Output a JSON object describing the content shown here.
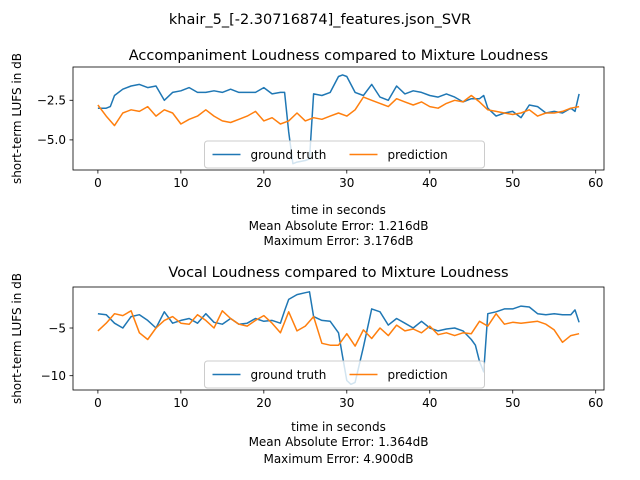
{
  "suptitle": "khair_5_[-2.30716874]_features.json_SVR",
  "colors": {
    "ground_truth": "#1f77b4",
    "prediction": "#ff7f0e",
    "axes": "#000000",
    "legend_border": "#cccccc"
  },
  "chart_data": [
    {
      "type": "line",
      "title": "Accompaniment Loudness compared to Mixture Loudness",
      "xlabel": "time in seconds",
      "ylabel": "short-term LUFS in dB",
      "xlim": [
        -3,
        61
      ],
      "ylim": [
        -6.9,
        -0.4
      ],
      "xticks": [
        0,
        10,
        20,
        30,
        40,
        50,
        60
      ],
      "yticks": [
        -2.5,
        -5.0
      ],
      "ytick_labels": [
        "−2.5",
        "−5.0"
      ],
      "grid": false,
      "legend": {
        "placement": "lower-center",
        "entries": [
          "ground truth",
          "prediction"
        ]
      },
      "notes": [
        "Mean Absolute Error: 1.216dB",
        "Maximum Error: 3.176dB"
      ],
      "series": [
        {
          "name": "ground truth",
          "color": "#1f77b4",
          "x": [
            0,
            1,
            1.5,
            2,
            3,
            4,
            5,
            6,
            7,
            8,
            9,
            10,
            11,
            12,
            13,
            14,
            15,
            16,
            17,
            18,
            19,
            20,
            21,
            22,
            22.5,
            23,
            23.5,
            24,
            25,
            25.5,
            26,
            27,
            28,
            29,
            29.5,
            30,
            31,
            32,
            33,
            34,
            35,
            36,
            37,
            38,
            39,
            40,
            41,
            42,
            43,
            44,
            45,
            46,
            46.5,
            47,
            48,
            49,
            50,
            51,
            52,
            53,
            54,
            55,
            56,
            57,
            57.5,
            58
          ],
          "y": [
            -3.0,
            -3.0,
            -2.9,
            -2.2,
            -1.8,
            -1.6,
            -1.5,
            -1.7,
            -1.6,
            -2.5,
            -2.0,
            -1.9,
            -1.7,
            -2.0,
            -2.0,
            -1.9,
            -2.0,
            -1.8,
            -2.0,
            -2.0,
            -2.0,
            -1.7,
            -2.1,
            -2.0,
            -2.0,
            -4.5,
            -6.5,
            -6.4,
            -6.3,
            -6.2,
            -2.1,
            -2.2,
            -2.0,
            -1.0,
            -0.9,
            -1.0,
            -2.0,
            -2.2,
            -1.5,
            -2.3,
            -2.5,
            -1.6,
            -2.1,
            -1.9,
            -2.0,
            -2.2,
            -2.3,
            -2.1,
            -2.3,
            -2.6,
            -2.4,
            -2.4,
            -2.2,
            -3.0,
            -3.5,
            -3.3,
            -3.2,
            -3.6,
            -2.8,
            -2.9,
            -3.3,
            -3.2,
            -3.3,
            -3.0,
            -3.2,
            -2.1
          ]
        },
        {
          "name": "prediction",
          "color": "#ff7f0e",
          "x": [
            0,
            1,
            2,
            3,
            4,
            5,
            6,
            7,
            8,
            9,
            10,
            11,
            12,
            13,
            14,
            15,
            16,
            17,
            18,
            19,
            20,
            21,
            22,
            23,
            24,
            25,
            26,
            27,
            28,
            29,
            30,
            31,
            32,
            33,
            34,
            35,
            36,
            37,
            38,
            39,
            40,
            41,
            42,
            43,
            44,
            45,
            46,
            47,
            48,
            49,
            50,
            51,
            52,
            53,
            54,
            55,
            56,
            57,
            58
          ],
          "y": [
            -2.8,
            -3.5,
            -4.1,
            -3.3,
            -3.1,
            -3.2,
            -2.9,
            -3.5,
            -3.1,
            -3.3,
            -4.0,
            -3.7,
            -3.5,
            -3.1,
            -3.5,
            -3.8,
            -3.9,
            -3.7,
            -3.5,
            -3.2,
            -3.8,
            -3.6,
            -4.0,
            -3.8,
            -3.3,
            -3.8,
            -3.6,
            -3.7,
            -3.5,
            -3.3,
            -3.5,
            -3.1,
            -2.3,
            -2.5,
            -2.7,
            -2.9,
            -2.4,
            -2.6,
            -2.8,
            -2.6,
            -2.9,
            -3.0,
            -2.7,
            -2.5,
            -2.6,
            -2.2,
            -2.6,
            -3.1,
            -3.2,
            -3.3,
            -3.4,
            -3.3,
            -3.1,
            -3.5,
            -3.3,
            -3.3,
            -3.2,
            -3.0,
            -2.9
          ]
        }
      ]
    },
    {
      "type": "line",
      "title": "Vocal Loudness compared to Mixture Loudness",
      "xlabel": "time in seconds",
      "ylabel": "short-term LUFS in dB",
      "xlim": [
        -3,
        61
      ],
      "ylim": [
        -11.5,
        -0.7
      ],
      "xticks": [
        0,
        10,
        20,
        30,
        40,
        50,
        60
      ],
      "yticks": [
        -5,
        -10
      ],
      "ytick_labels": [
        "−5",
        "−10"
      ],
      "grid": false,
      "legend": {
        "placement": "lower-center",
        "entries": [
          "ground truth",
          "prediction"
        ]
      },
      "notes": [
        "Mean Absolute Error: 1.364dB",
        "Maximum Error: 4.900dB"
      ],
      "series": [
        {
          "name": "ground truth",
          "color": "#1f77b4",
          "x": [
            0,
            1,
            2,
            3,
            4,
            5,
            6,
            7,
            8,
            9,
            10,
            11,
            12,
            13,
            14,
            15,
            16,
            17,
            18,
            19,
            20,
            21,
            22,
            22.5,
            23,
            24,
            25,
            25.5,
            26,
            27,
            28,
            29,
            29.5,
            30,
            30.5,
            31,
            32,
            33,
            34,
            35,
            36,
            37,
            38,
            39,
            40,
            41,
            42,
            43,
            44,
            45,
            45.5,
            46,
            46.5,
            47,
            48,
            49,
            50,
            51,
            52,
            53,
            54,
            55,
            56,
            57,
            57.5,
            58
          ],
          "y": [
            -3.5,
            -3.6,
            -4.5,
            -5.0,
            -3.8,
            -3.6,
            -4.2,
            -5.0,
            -3.3,
            -4.5,
            -4.2,
            -4.0,
            -4.5,
            -3.5,
            -4.4,
            -4.6,
            -4.0,
            -4.6,
            -4.5,
            -4.0,
            -4.3,
            -4.2,
            -4.5,
            -3.2,
            -2.0,
            -1.5,
            -1.3,
            -1.2,
            -3.8,
            -4.2,
            -4.3,
            -5.5,
            -8.0,
            -10.5,
            -10.9,
            -10.7,
            -7.0,
            -3.0,
            -3.3,
            -4.7,
            -4.0,
            -4.5,
            -5.0,
            -4.3,
            -5.0,
            -5.3,
            -5.1,
            -5.0,
            -5.3,
            -6.2,
            -6.8,
            -8.5,
            -9.6,
            -3.5,
            -3.3,
            -3.0,
            -3.0,
            -2.7,
            -2.8,
            -3.5,
            -3.6,
            -3.5,
            -3.6,
            -3.6,
            -3.1,
            -4.4
          ]
        },
        {
          "name": "prediction",
          "color": "#ff7f0e",
          "x": [
            0,
            1,
            2,
            3,
            4,
            5,
            6,
            7,
            8,
            9,
            10,
            11,
            12,
            13,
            14,
            15,
            16,
            17,
            18,
            19,
            20,
            21,
            22,
            23,
            24,
            25,
            26,
            27,
            28,
            29,
            30,
            31,
            32,
            33,
            34,
            35,
            36,
            37,
            38,
            39,
            40,
            41,
            42,
            43,
            44,
            45,
            46,
            47,
            48,
            49,
            50,
            51,
            52,
            53,
            54,
            55,
            56,
            57,
            58
          ],
          "y": [
            -5.3,
            -4.5,
            -3.5,
            -3.7,
            -3.2,
            -5.5,
            -6.2,
            -5.0,
            -4.2,
            -3.8,
            -4.5,
            -4.6,
            -3.6,
            -4.2,
            -5.0,
            -3.2,
            -4.0,
            -4.6,
            -4.8,
            -4.2,
            -3.7,
            -4.5,
            -5.5,
            -3.3,
            -5.3,
            -4.8,
            -3.8,
            -6.6,
            -6.8,
            -6.8,
            -5.6,
            -6.9,
            -5.2,
            -6.1,
            -5.0,
            -5.8,
            -4.7,
            -5.3,
            -5.1,
            -5.5,
            -4.8,
            -5.7,
            -5.5,
            -5.8,
            -5.5,
            -5.6,
            -4.3,
            -4.8,
            -3.5,
            -4.6,
            -4.4,
            -4.5,
            -4.4,
            -4.3,
            -4.6,
            -5.2,
            -6.5,
            -5.8,
            -5.6
          ]
        }
      ]
    }
  ]
}
